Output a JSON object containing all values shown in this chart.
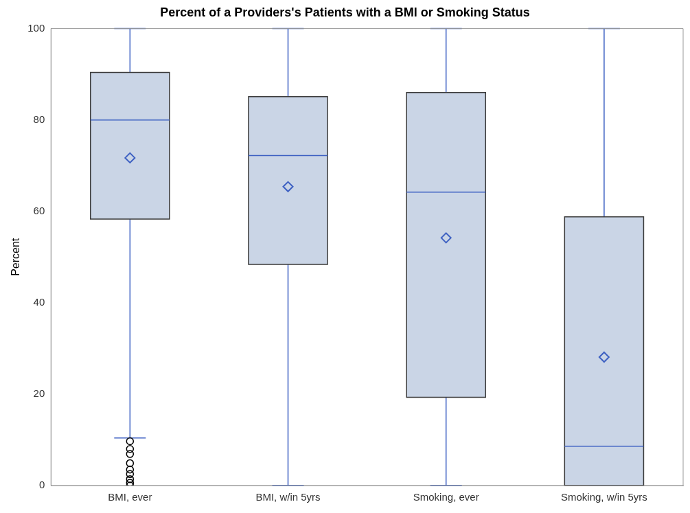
{
  "chart_data": {
    "type": "box",
    "title": "Percent of a Providers's Patients with a BMI or Smoking Status",
    "ylabel": "Percent",
    "categories": [
      "BMI, ever",
      "BMI, w/in 5yrs",
      "Smoking, ever",
      "Smoking, w/in 5yrs"
    ],
    "ylim": [
      0,
      100
    ],
    "yticks": [
      0,
      20,
      40,
      60,
      80,
      100
    ],
    "grid": false,
    "legend": false,
    "color": "#cad5e6",
    "boxes": [
      {
        "low": 10.4,
        "q1": 58.3,
        "median": 80.0,
        "q3": 90.4,
        "high": 100,
        "mean": 71.7,
        "outliers": [
          9.7,
          8.0,
          6.9,
          4.9,
          3.5,
          2.5,
          1.4,
          0.6,
          0
        ]
      },
      {
        "low": 0,
        "q1": 48.4,
        "median": 72.2,
        "q3": 85.1,
        "high": 100,
        "mean": 65.4
      },
      {
        "low": 0,
        "q1": 19.3,
        "median": 64.2,
        "q3": 86.0,
        "high": 100,
        "mean": 54.2
      },
      {
        "low": 0,
        "q1": 0,
        "median": 8.6,
        "q3": 58.8,
        "high": 100,
        "mean": 28.1
      }
    ]
  }
}
